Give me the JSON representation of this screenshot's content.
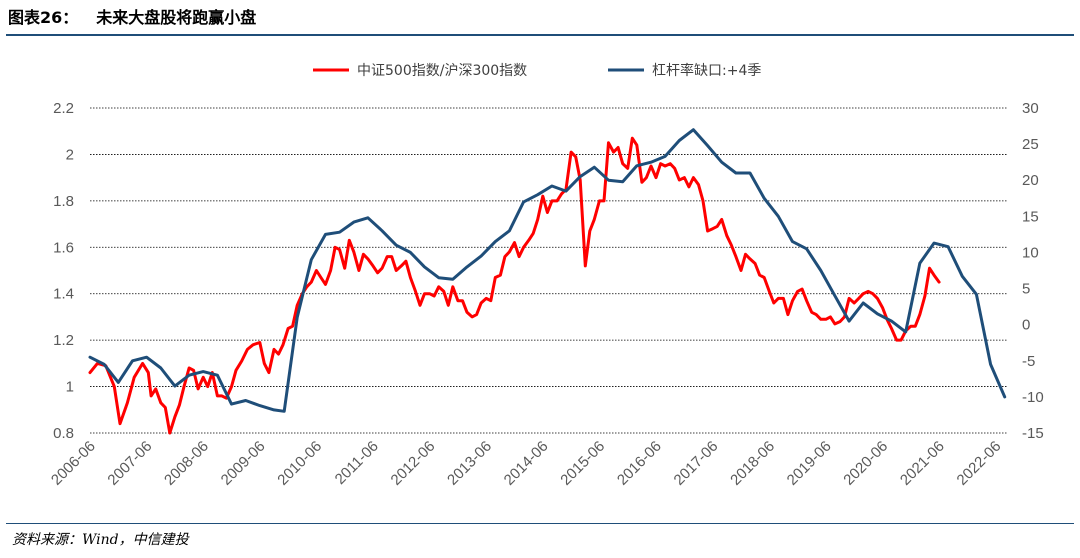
{
  "figure": {
    "label": "图表26：",
    "title": "未来大盘股将跑赢小盘",
    "source": "资料来源：Wind，中信建投"
  },
  "chart_data": {
    "type": "line",
    "x_tick_labels": [
      "2006-06",
      "2007-06",
      "2008-06",
      "2009-06",
      "2010-06",
      "2011-06",
      "2012-06",
      "2013-06",
      "2014-06",
      "2015-06",
      "2016-06",
      "2017-06",
      "2018-06",
      "2019-06",
      "2020-06",
      "2021-06",
      "2022-06"
    ],
    "y_left": {
      "min": 0.8,
      "max": 2.2,
      "ticks": [
        0.8,
        1,
        1.2,
        1.4,
        1.6,
        1.8,
        2,
        2.2
      ],
      "tick_labels": [
        "0.8",
        "1",
        "1.2",
        "1.4",
        "1.6",
        "1.8",
        "2",
        "2.2"
      ]
    },
    "y_right": {
      "min": -15,
      "max": 30,
      "ticks": [
        -15,
        -10,
        -5,
        0,
        5,
        10,
        15,
        20,
        25,
        30
      ],
      "tick_labels": [
        "-15",
        "-10",
        "-5",
        "0",
        "5",
        "10",
        "15",
        "20",
        "25",
        "30"
      ]
    },
    "grid": "horizontal dotted",
    "legend_position": "top-center",
    "series": [
      {
        "name": "中证500指数/沪深300指数",
        "axis": "left",
        "color": "#ff0000",
        "points": [
          [
            2006.42,
            1.06
          ],
          [
            2006.55,
            1.1
          ],
          [
            2006.7,
            1.09
          ],
          [
            2006.85,
            1.0
          ],
          [
            2006.95,
            0.84
          ],
          [
            2007.08,
            0.93
          ],
          [
            2007.2,
            1.04
          ],
          [
            2007.35,
            1.1
          ],
          [
            2007.45,
            1.06
          ],
          [
            2007.5,
            0.96
          ],
          [
            2007.58,
            0.99
          ],
          [
            2007.67,
            0.93
          ],
          [
            2007.75,
            0.91
          ],
          [
            2007.83,
            0.8
          ],
          [
            2007.92,
            0.87
          ],
          [
            2008.0,
            0.92
          ],
          [
            2008.08,
            1.0
          ],
          [
            2008.17,
            1.08
          ],
          [
            2008.25,
            1.07
          ],
          [
            2008.33,
            0.99
          ],
          [
            2008.42,
            1.04
          ],
          [
            2008.5,
            1.0
          ],
          [
            2008.58,
            1.06
          ],
          [
            2008.67,
            0.96
          ],
          [
            2008.75,
            0.96
          ],
          [
            2008.83,
            0.95
          ],
          [
            2008.92,
            1.0
          ],
          [
            2009.0,
            1.07
          ],
          [
            2009.1,
            1.11
          ],
          [
            2009.2,
            1.16
          ],
          [
            2009.3,
            1.18
          ],
          [
            2009.42,
            1.19
          ],
          [
            2009.5,
            1.1
          ],
          [
            2009.58,
            1.06
          ],
          [
            2009.67,
            1.16
          ],
          [
            2009.75,
            1.14
          ],
          [
            2009.83,
            1.18
          ],
          [
            2009.92,
            1.25
          ],
          [
            2010.0,
            1.26
          ],
          [
            2010.08,
            1.35
          ],
          [
            2010.17,
            1.4
          ],
          [
            2010.25,
            1.43
          ],
          [
            2010.33,
            1.45
          ],
          [
            2010.42,
            1.5
          ],
          [
            2010.5,
            1.47
          ],
          [
            2010.58,
            1.44
          ],
          [
            2010.67,
            1.5
          ],
          [
            2010.75,
            1.6
          ],
          [
            2010.83,
            1.59
          ],
          [
            2010.92,
            1.51
          ],
          [
            2011.0,
            1.63
          ],
          [
            2011.08,
            1.58
          ],
          [
            2011.17,
            1.5
          ],
          [
            2011.25,
            1.57
          ],
          [
            2011.33,
            1.55
          ],
          [
            2011.42,
            1.52
          ],
          [
            2011.5,
            1.49
          ],
          [
            2011.58,
            1.51
          ],
          [
            2011.67,
            1.56
          ],
          [
            2011.75,
            1.56
          ],
          [
            2011.83,
            1.5
          ],
          [
            2011.92,
            1.52
          ],
          [
            2012.0,
            1.54
          ],
          [
            2012.08,
            1.47
          ],
          [
            2012.17,
            1.41
          ],
          [
            2012.25,
            1.35
          ],
          [
            2012.33,
            1.4
          ],
          [
            2012.42,
            1.4
          ],
          [
            2012.5,
            1.39
          ],
          [
            2012.58,
            1.43
          ],
          [
            2012.67,
            1.41
          ],
          [
            2012.75,
            1.35
          ],
          [
            2012.83,
            1.43
          ],
          [
            2012.92,
            1.37
          ],
          [
            2013.0,
            1.37
          ],
          [
            2013.08,
            1.32
          ],
          [
            2013.17,
            1.3
          ],
          [
            2013.25,
            1.31
          ],
          [
            2013.33,
            1.36
          ],
          [
            2013.42,
            1.38
          ],
          [
            2013.5,
            1.37
          ],
          [
            2013.58,
            1.47
          ],
          [
            2013.67,
            1.48
          ],
          [
            2013.75,
            1.56
          ],
          [
            2013.83,
            1.58
          ],
          [
            2013.92,
            1.62
          ],
          [
            2014.0,
            1.56
          ],
          [
            2014.08,
            1.6
          ],
          [
            2014.17,
            1.63
          ],
          [
            2014.25,
            1.66
          ],
          [
            2014.33,
            1.72
          ],
          [
            2014.42,
            1.82
          ],
          [
            2014.5,
            1.75
          ],
          [
            2014.58,
            1.8
          ],
          [
            2014.67,
            1.8
          ],
          [
            2014.75,
            1.83
          ],
          [
            2014.83,
            1.85
          ],
          [
            2014.92,
            2.01
          ],
          [
            2015.0,
            1.99
          ],
          [
            2015.08,
            1.89
          ],
          [
            2015.17,
            1.52
          ],
          [
            2015.25,
            1.67
          ],
          [
            2015.33,
            1.72
          ],
          [
            2015.42,
            1.8
          ],
          [
            2015.5,
            1.8
          ],
          [
            2015.58,
            2.05
          ],
          [
            2015.67,
            2.01
          ],
          [
            2015.75,
            2.03
          ],
          [
            2015.83,
            1.96
          ],
          [
            2015.92,
            1.94
          ],
          [
            2016.0,
            2.07
          ],
          [
            2016.08,
            2.04
          ],
          [
            2016.17,
            1.88
          ],
          [
            2016.25,
            1.9
          ],
          [
            2016.33,
            1.95
          ],
          [
            2016.42,
            1.9
          ],
          [
            2016.5,
            1.96
          ],
          [
            2016.58,
            1.95
          ],
          [
            2016.67,
            1.96
          ],
          [
            2016.75,
            1.94
          ],
          [
            2016.83,
            1.89
          ],
          [
            2016.92,
            1.9
          ],
          [
            2017.0,
            1.86
          ],
          [
            2017.08,
            1.9
          ],
          [
            2017.17,
            1.87
          ],
          [
            2017.25,
            1.8
          ],
          [
            2017.33,
            1.67
          ],
          [
            2017.42,
            1.68
          ],
          [
            2017.5,
            1.69
          ],
          [
            2017.58,
            1.72
          ],
          [
            2017.67,
            1.65
          ],
          [
            2017.75,
            1.61
          ],
          [
            2017.83,
            1.56
          ],
          [
            2017.92,
            1.5
          ],
          [
            2018.0,
            1.57
          ],
          [
            2018.08,
            1.55
          ],
          [
            2018.17,
            1.53
          ],
          [
            2018.25,
            1.48
          ],
          [
            2018.33,
            1.47
          ],
          [
            2018.42,
            1.41
          ],
          [
            2018.5,
            1.36
          ],
          [
            2018.58,
            1.38
          ],
          [
            2018.67,
            1.38
          ],
          [
            2018.75,
            1.31
          ],
          [
            2018.83,
            1.37
          ],
          [
            2018.92,
            1.41
          ],
          [
            2019.0,
            1.42
          ],
          [
            2019.08,
            1.37
          ],
          [
            2019.17,
            1.32
          ],
          [
            2019.25,
            1.31
          ],
          [
            2019.33,
            1.29
          ],
          [
            2019.42,
            1.29
          ],
          [
            2019.5,
            1.3
          ],
          [
            2019.58,
            1.27
          ],
          [
            2019.67,
            1.28
          ],
          [
            2019.75,
            1.3
          ],
          [
            2019.83,
            1.38
          ],
          [
            2019.92,
            1.36
          ],
          [
            2020.0,
            1.38
          ],
          [
            2020.08,
            1.4
          ],
          [
            2020.17,
            1.41
          ],
          [
            2020.25,
            1.4
          ],
          [
            2020.33,
            1.38
          ],
          [
            2020.42,
            1.34
          ],
          [
            2020.5,
            1.29
          ],
          [
            2020.58,
            1.25
          ],
          [
            2020.67,
            1.2
          ],
          [
            2020.75,
            1.2
          ],
          [
            2020.83,
            1.24
          ],
          [
            2020.92,
            1.26
          ],
          [
            2021.0,
            1.26
          ],
          [
            2021.08,
            1.31
          ],
          [
            2021.17,
            1.39
          ],
          [
            2021.25,
            1.51
          ],
          [
            2021.33,
            1.48
          ],
          [
            2021.42,
            1.45
          ]
        ]
      },
      {
        "name": "杠杆率缺口:+4季",
        "axis": "right",
        "color": "#1f4e79",
        "points": [
          [
            2006.42,
            -4.5
          ],
          [
            2006.67,
            -5.5
          ],
          [
            2006.92,
            -8.0
          ],
          [
            2007.17,
            -5.0
          ],
          [
            2007.42,
            -4.5
          ],
          [
            2007.67,
            -6.0
          ],
          [
            2007.92,
            -8.5
          ],
          [
            2008.17,
            -7.0
          ],
          [
            2008.42,
            -6.5
          ],
          [
            2008.67,
            -7.0
          ],
          [
            2008.92,
            -11.0
          ],
          [
            2009.17,
            -10.5
          ],
          [
            2009.42,
            -11.2
          ],
          [
            2009.67,
            -11.8
          ],
          [
            2009.85,
            -12.0
          ],
          [
            2010.08,
            1.0
          ],
          [
            2010.33,
            9.0
          ],
          [
            2010.58,
            12.5
          ],
          [
            2010.83,
            12.8
          ],
          [
            2011.08,
            14.2
          ],
          [
            2011.33,
            14.8
          ],
          [
            2011.58,
            13.0
          ],
          [
            2011.83,
            11.0
          ],
          [
            2012.08,
            10.0
          ],
          [
            2012.33,
            8.0
          ],
          [
            2012.58,
            6.5
          ],
          [
            2012.83,
            6.3
          ],
          [
            2013.08,
            8.0
          ],
          [
            2013.33,
            9.5
          ],
          [
            2013.58,
            11.5
          ],
          [
            2013.83,
            13.0
          ],
          [
            2014.08,
            17.0
          ],
          [
            2014.33,
            18.0
          ],
          [
            2014.58,
            19.2
          ],
          [
            2014.83,
            18.5
          ],
          [
            2015.08,
            20.5
          ],
          [
            2015.33,
            21.8
          ],
          [
            2015.58,
            20.0
          ],
          [
            2015.83,
            19.8
          ],
          [
            2016.08,
            22.0
          ],
          [
            2016.33,
            22.5
          ],
          [
            2016.58,
            23.3
          ],
          [
            2016.83,
            25.5
          ],
          [
            2017.08,
            27.0
          ],
          [
            2017.33,
            24.8
          ],
          [
            2017.58,
            22.5
          ],
          [
            2017.83,
            21.0
          ],
          [
            2018.08,
            21.0
          ],
          [
            2018.33,
            17.5
          ],
          [
            2018.58,
            15.0
          ],
          [
            2018.83,
            11.5
          ],
          [
            2019.08,
            10.5
          ],
          [
            2019.33,
            7.5
          ],
          [
            2019.58,
            4.0
          ],
          [
            2019.83,
            0.5
          ],
          [
            2020.08,
            3.0
          ],
          [
            2020.33,
            1.5
          ],
          [
            2020.58,
            0.5
          ],
          [
            2020.83,
            -1.0
          ],
          [
            2021.08,
            8.5
          ],
          [
            2021.33,
            11.3
          ],
          [
            2021.58,
            10.8
          ],
          [
            2021.83,
            6.7
          ],
          [
            2022.08,
            4.2
          ],
          [
            2022.33,
            -5.5
          ],
          [
            2022.58,
            -10.0
          ]
        ]
      }
    ]
  }
}
